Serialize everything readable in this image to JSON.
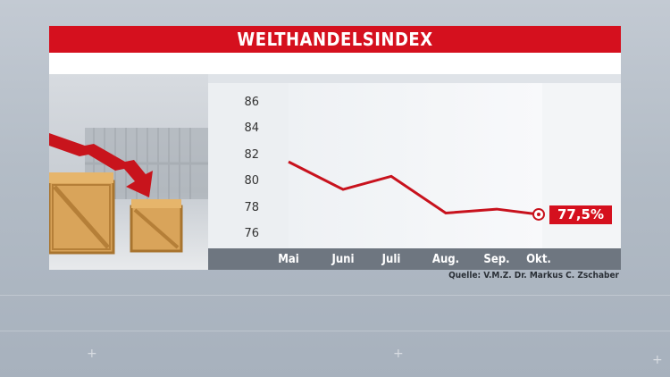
{
  "header": {
    "title": "WELTHANDELSINDEX"
  },
  "source": "Quelle: V.M.Z. Dr. Markus C. Zschaber",
  "callout": {
    "label": "77,5%",
    "color": "#d5101e"
  },
  "chart_data": {
    "type": "line",
    "title": "WELTHANDELSINDEX",
    "xlabel": "",
    "ylabel": "",
    "categories": [
      "Mai",
      "Juni",
      "Juli",
      "Aug.",
      "Sep.",
      "Okt."
    ],
    "x_ticks": [
      "Mai",
      "Juni",
      "Juli",
      "Aug.",
      "Sep.",
      "Okt."
    ],
    "y_ticks": [
      "86",
      "84",
      "82",
      "80",
      "78",
      "76"
    ],
    "ylim": [
      75,
      87
    ],
    "series": [
      {
        "color": "#c8121d",
        "values": [
          81.5,
          79.4,
          80.4,
          77.6,
          77.9,
          77.5
        ]
      }
    ],
    "grid": false,
    "last_point_label": "77,5%"
  }
}
